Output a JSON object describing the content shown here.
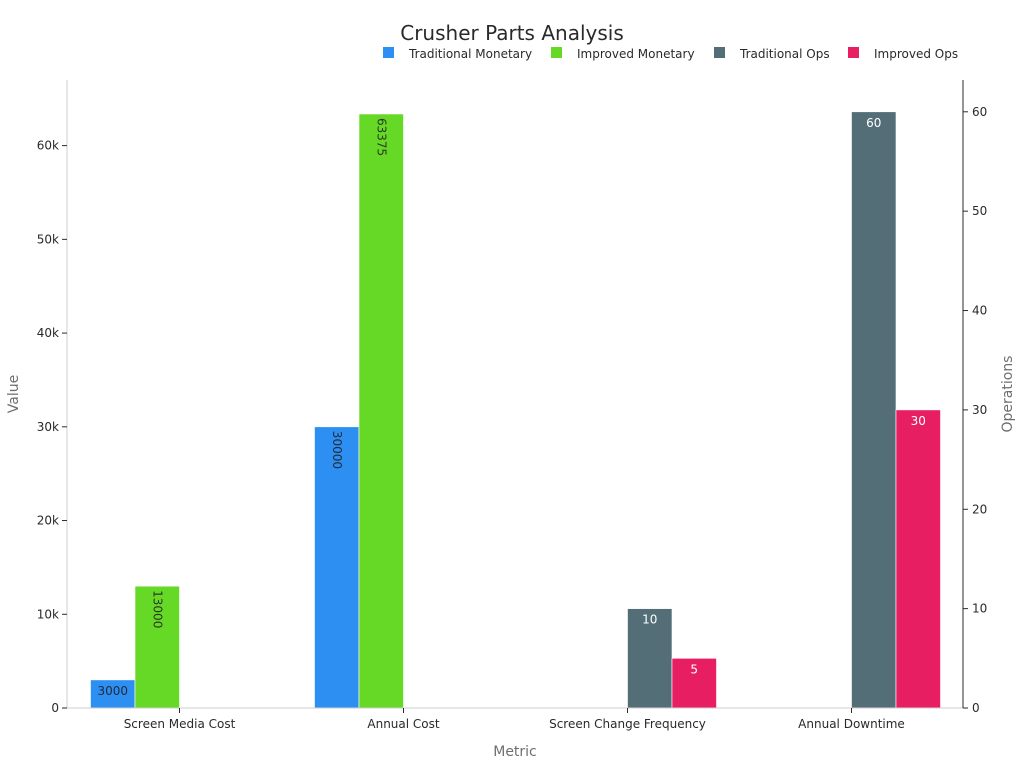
{
  "chart_data": {
    "type": "bar",
    "title": "Crusher Parts Analysis",
    "xlabel": "Metric",
    "ylabel": "Value",
    "y2label": "Operations",
    "categories": [
      "Screen Media Cost",
      "Annual Cost",
      "Screen Change Frequency",
      "Annual Downtime"
    ],
    "ylim": [
      0,
      67000
    ],
    "y2lim": [
      0,
      63.2
    ],
    "yticks": [
      0,
      10000,
      20000,
      30000,
      40000,
      50000,
      60000
    ],
    "yticklabels": [
      "0",
      "10k",
      "20k",
      "30k",
      "40k",
      "50k",
      "60k"
    ],
    "y2ticks": [
      0,
      10,
      20,
      30,
      40,
      50,
      60
    ],
    "y2ticklabels": [
      "0",
      "10",
      "20",
      "30",
      "40",
      "50",
      "60"
    ],
    "legend_position": "top",
    "series": [
      {
        "name": "Traditional Monetary",
        "axis": "left",
        "color": "#2e8ff3",
        "label_color": "#1f2a3a",
        "label_style": "horizontal",
        "values": [
          3000,
          30000,
          null,
          null
        ],
        "labels": [
          "3000",
          "30000",
          "",
          ""
        ]
      },
      {
        "name": "Improved Monetary",
        "axis": "left",
        "color": "#66d926",
        "label_color": "#2a3a20",
        "label_style": "vertical",
        "values": [
          13000,
          63375,
          null,
          null
        ],
        "labels": [
          "13000",
          "63375",
          "",
          ""
        ]
      },
      {
        "name": "Traditional Ops",
        "axis": "right",
        "color": "#546e78",
        "label_color": "#ffffff",
        "label_style": "horizontal",
        "values": [
          null,
          null,
          10,
          60
        ],
        "labels": [
          "",
          "",
          "10",
          "60"
        ]
      },
      {
        "name": "Improved Ops",
        "axis": "right",
        "color": "#e81e63",
        "label_color": "#ffffff",
        "label_style": "horizontal",
        "values": [
          null,
          null,
          5,
          30
        ],
        "labels": [
          "",
          "",
          "5",
          "30"
        ]
      }
    ]
  }
}
